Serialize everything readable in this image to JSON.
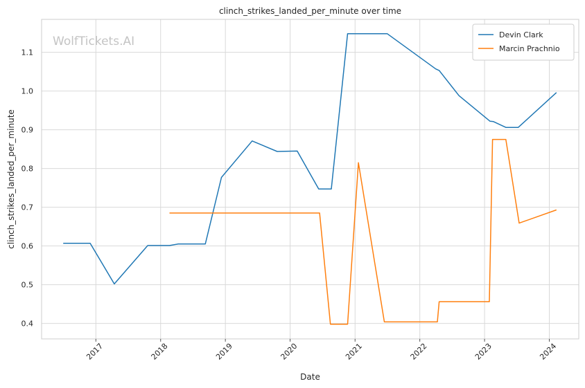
{
  "chart_data": {
    "type": "line",
    "title": "clinch_strikes_landed_per_minute over time",
    "xlabel": "Date",
    "ylabel": "clinch_strikes_landed_per_minute",
    "watermark": "WolfTickets.AI",
    "x_ticks": [
      "2017",
      "2018",
      "2019",
      "2020",
      "2021",
      "2022",
      "2023",
      "2024"
    ],
    "y_ticks": [
      "0.4",
      "0.5",
      "0.6",
      "0.7",
      "0.8",
      "0.9",
      "1.0",
      "1.1"
    ],
    "xlim": [
      "2016-03-01",
      "2024-06-15"
    ],
    "ylim": [
      0.36,
      1.185
    ],
    "grid": true,
    "legend_position": "top-right",
    "series": [
      {
        "name": "Devin Clark",
        "color": "#1f77b4",
        "points": [
          {
            "x": "2016-07-01",
            "y": 0.607
          },
          {
            "x": "2016-11-30",
            "y": 0.607
          },
          {
            "x": "2017-04-15",
            "y": 0.502
          },
          {
            "x": "2017-10-20",
            "y": 0.601
          },
          {
            "x": "2018-02-20",
            "y": 0.601
          },
          {
            "x": "2018-04-10",
            "y": 0.605
          },
          {
            "x": "2018-09-10",
            "y": 0.605
          },
          {
            "x": "2018-12-10",
            "y": 0.777
          },
          {
            "x": "2019-06-01",
            "y": 0.871
          },
          {
            "x": "2019-10-20",
            "y": 0.844
          },
          {
            "x": "2020-02-10",
            "y": 0.845
          },
          {
            "x": "2020-06-10",
            "y": 0.747
          },
          {
            "x": "2020-08-20",
            "y": 0.747
          },
          {
            "x": "2020-11-20",
            "y": 1.148
          },
          {
            "x": "2021-07-01",
            "y": 1.148
          },
          {
            "x": "2022-04-01",
            "y": 1.057
          },
          {
            "x": "2022-04-20",
            "y": 1.053
          },
          {
            "x": "2022-08-10",
            "y": 0.988
          },
          {
            "x": "2023-02-01",
            "y": 0.922
          },
          {
            "x": "2023-02-20",
            "y": 0.921
          },
          {
            "x": "2023-05-01",
            "y": 0.906
          },
          {
            "x": "2023-07-10",
            "y": 0.906
          },
          {
            "x": "2024-02-10",
            "y": 0.996
          }
        ]
      },
      {
        "name": "Marcin Prachnio",
        "color": "#ff7f0e",
        "points": [
          {
            "x": "2018-02-20",
            "y": 0.685
          },
          {
            "x": "2020-06-15",
            "y": 0.685
          },
          {
            "x": "2020-08-15",
            "y": 0.398
          },
          {
            "x": "2020-11-20",
            "y": 0.398
          },
          {
            "x": "2021-01-20",
            "y": 0.815
          },
          {
            "x": "2021-06-15",
            "y": 0.404
          },
          {
            "x": "2022-04-10",
            "y": 0.404
          },
          {
            "x": "2022-04-20",
            "y": 0.456
          },
          {
            "x": "2023-01-28",
            "y": 0.456
          },
          {
            "x": "2023-02-15",
            "y": 0.875
          },
          {
            "x": "2023-05-01",
            "y": 0.875
          },
          {
            "x": "2023-07-15",
            "y": 0.659
          },
          {
            "x": "2024-02-10",
            "y": 0.693
          }
        ]
      }
    ]
  }
}
